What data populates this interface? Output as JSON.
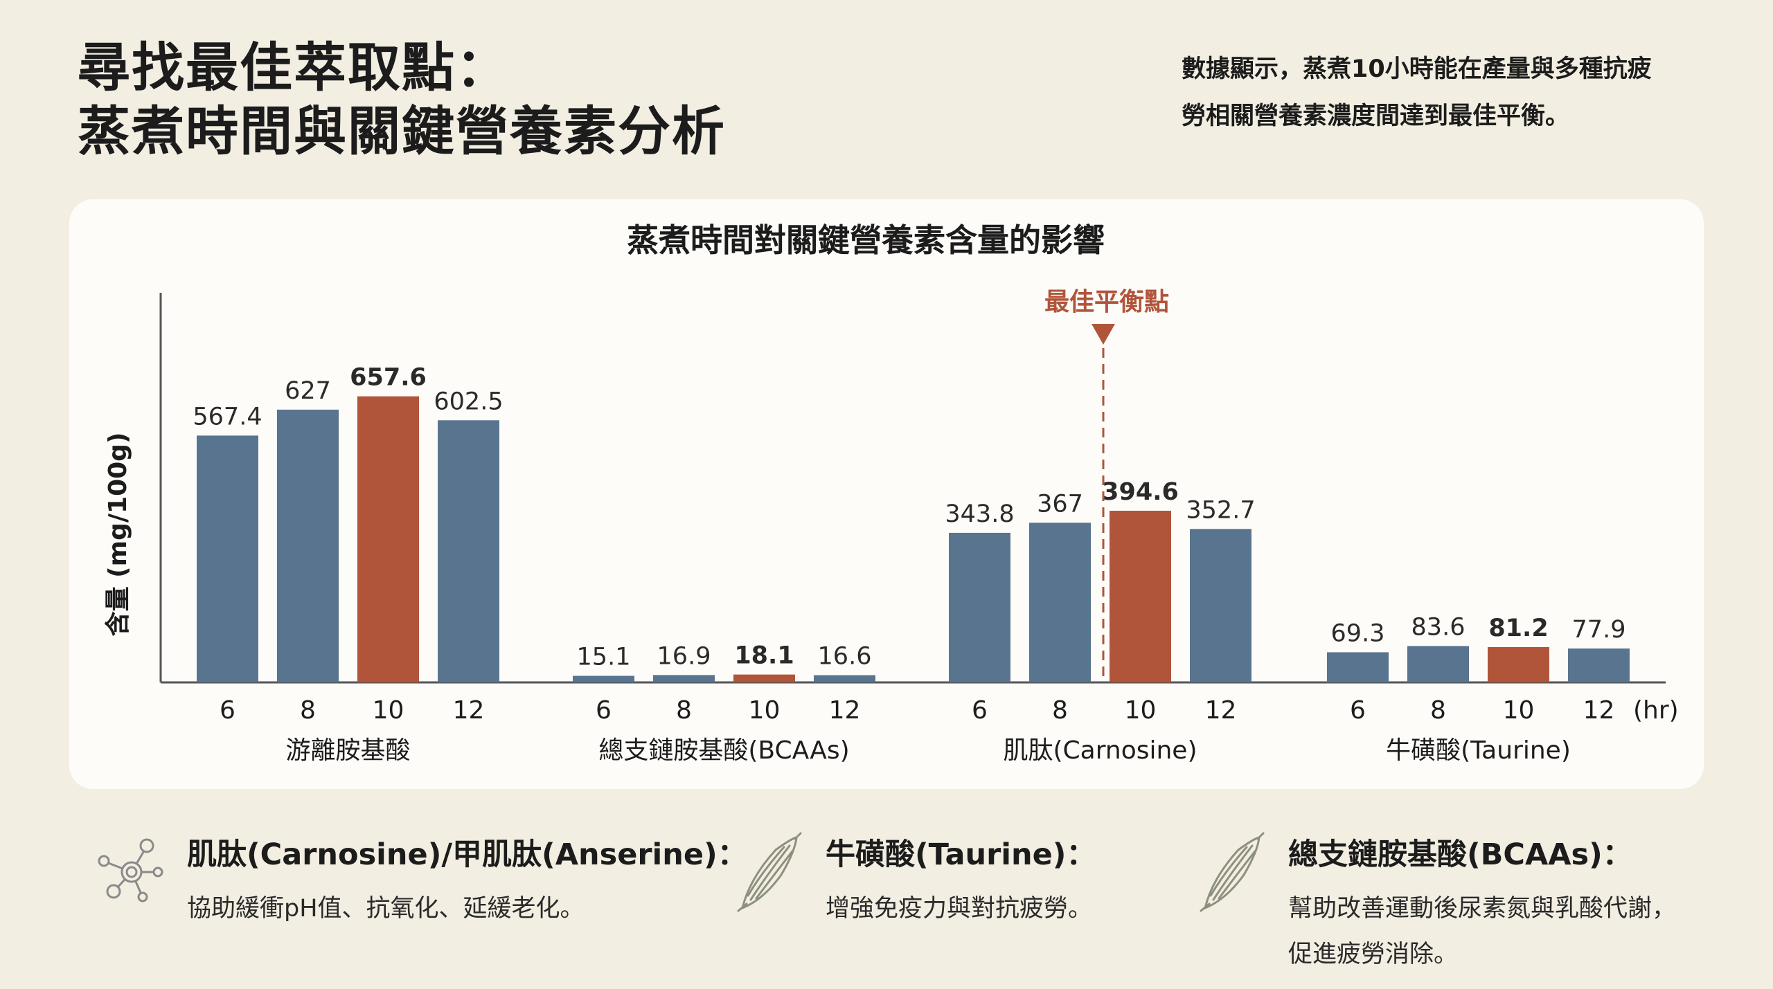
{
  "header": {
    "title_line1": "尋找最佳萃取點：",
    "title_line2": "蒸煮時間與關鍵營養素分析",
    "summary_line1": "數據顯示，蒸煮10小時能在產量與多種抗疲",
    "summary_line2": "勞相關營養素濃度間達到最佳平衡。"
  },
  "colors": {
    "bar": "#58748f",
    "highlight": "#b0553a",
    "optimal": "#b0553a",
    "axis": "#555555"
  },
  "chart_data": {
    "type": "bar",
    "title": "蒸煮時間對關鍵營養素含量的影響",
    "ylabel": "含量 (mg/100g)",
    "xlabel": "",
    "x_unit": "(hr)",
    "ylim": [
      0,
      700
    ],
    "grid": false,
    "highlight_category": "10",
    "optimal_marker_label": "最佳平衡點",
    "groups": [
      {
        "name": "游離胺基酸",
        "categories": [
          "6",
          "8",
          "10",
          "12"
        ],
        "values": [
          567.4,
          627,
          657.6,
          602.5
        ],
        "labels": [
          "567.4",
          "627",
          "657.6",
          "602.5"
        ]
      },
      {
        "name": "總支鏈胺基酸(BCAAs)",
        "categories": [
          "6",
          "8",
          "10",
          "12"
        ],
        "values": [
          15.1,
          16.9,
          18.1,
          16.6
        ],
        "labels": [
          "15.1",
          "16.9",
          "18.1",
          "16.6"
        ]
      },
      {
        "name": "肌肽(Carnosine)",
        "categories": [
          "6",
          "8",
          "10",
          "12"
        ],
        "values": [
          343.8,
          367,
          394.6,
          352.7
        ],
        "labels": [
          "343.8",
          "367",
          "394.6",
          "352.7"
        ]
      },
      {
        "name": "牛磺酸(Taurine)",
        "categories": [
          "6",
          "8",
          "10",
          "12"
        ],
        "values": [
          69.3,
          83.6,
          81.2,
          77.9
        ],
        "labels": [
          "69.3",
          "83.6",
          "81.2",
          "77.9"
        ]
      }
    ]
  },
  "features": [
    {
      "icon": "molecule-icon",
      "title": "肌肽(Carnosine)/甲肌肽(Anserine)：",
      "desc": [
        "協助緩衝pH值、抗氧化、延緩老化。"
      ]
    },
    {
      "icon": "muscle-fiber-icon",
      "title": "牛磺酸(Taurine)：",
      "desc": [
        "增強免疫力與對抗疲勞。"
      ]
    },
    {
      "icon": "muscle-fiber-icon",
      "title": "總支鏈胺基酸(BCAAs)：",
      "desc": [
        "幫助改善運動後尿素氮與乳酸代謝，",
        "促進疲勞消除。"
      ]
    }
  ]
}
